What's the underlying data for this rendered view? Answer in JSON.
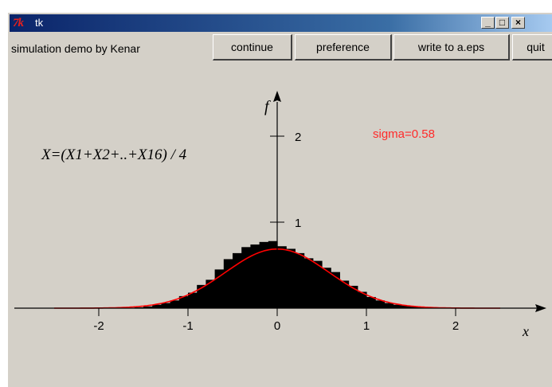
{
  "window": {
    "title": "tk",
    "app_icon": "tk-feather-icon",
    "controls": {
      "minimize": "_",
      "maximize": "□",
      "close": "×"
    }
  },
  "toolbar": {
    "label": "simulation demo by Kenar",
    "buttons": {
      "continue": "continue",
      "preference": "preference",
      "write": "write to a.eps",
      "quit": "quit"
    }
  },
  "plot": {
    "formula": "X=(X1+X2+..+X16) / 4",
    "sigma_label": "sigma=0.58",
    "x_axis_label": "x",
    "y_axis_label": "f",
    "x_ticks": [
      "-2",
      "-1",
      "0",
      "1",
      "2"
    ],
    "y_ticks": [
      "1",
      "2"
    ]
  },
  "chart_data": {
    "type": "bar",
    "description_text": "",
    "xlim": [
      -2.5,
      2.5
    ],
    "ylim": [
      0,
      2.4
    ],
    "bin_width": 0.1,
    "bin_start": -2.5,
    "histogram": [
      0,
      0,
      0,
      0,
      0,
      0,
      0,
      0,
      0,
      0.01,
      0.02,
      0.04,
      0.06,
      0.09,
      0.14,
      0.18,
      0.27,
      0.33,
      0.45,
      0.57,
      0.64,
      0.71,
      0.74,
      0.77,
      0.78,
      0.72,
      0.69,
      0.64,
      0.58,
      0.55,
      0.47,
      0.42,
      0.32,
      0.26,
      0.19,
      0.13,
      0.09,
      0.06,
      0.04,
      0.03,
      0.02,
      0.01,
      0,
      0,
      0,
      0,
      0,
      0,
      0,
      0
    ],
    "normal_curve": {
      "mean": 0,
      "sigma": 0.58,
      "color": "#ff0000"
    },
    "colors": {
      "bars": "#000000",
      "curve": "#ff0000",
      "sigma_text": "#ff0000"
    }
  }
}
